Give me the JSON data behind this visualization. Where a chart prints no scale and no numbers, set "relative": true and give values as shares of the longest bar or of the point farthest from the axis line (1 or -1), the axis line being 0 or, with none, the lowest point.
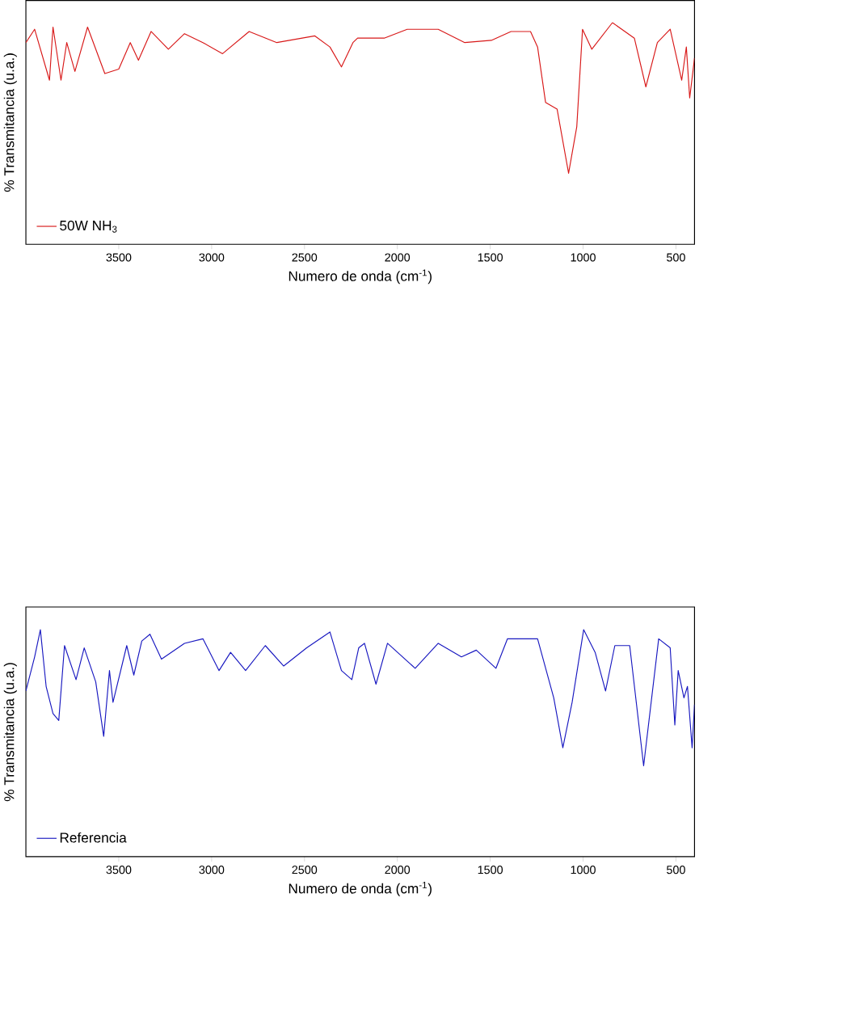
{
  "chart_data": [
    {
      "type": "line",
      "relative": true,
      "xlim": [
        4000,
        400
      ],
      "xticks": [
        3500,
        3000,
        2500,
        2000,
        1500,
        1000,
        500
      ],
      "xlabel": "Numero de onda (cm$^{-1}$)",
      "ylabel": "% Transmitancia (u.a.)",
      "legend": "bottom left",
      "x": [
        4000,
        3953,
        3873,
        3854,
        3811,
        3780,
        3736,
        3668,
        3575,
        3500,
        3438,
        3394,
        3326,
        3233,
        3146,
        3047,
        2941,
        2798,
        2649,
        2444,
        2363,
        2301,
        2239,
        2214,
        2071,
        1947,
        1780,
        1637,
        1494,
        1388,
        1283,
        1245,
        1202,
        1140,
        1078,
        1034,
        1003,
        953,
        842,
        724,
        662,
        600,
        531,
        469,
        444,
        426,
        400
      ],
      "series": [
        {
          "name": "50W NH$_{3}$",
          "color": "#d81818",
          "values": [
            0.91,
            0.97,
            0.74,
            0.98,
            0.74,
            0.91,
            0.78,
            0.98,
            0.77,
            0.79,
            0.91,
            0.83,
            0.96,
            0.88,
            0.95,
            0.91,
            0.86,
            0.96,
            0.91,
            0.94,
            0.89,
            0.8,
            0.91,
            0.93,
            0.93,
            0.97,
            0.97,
            0.91,
            0.92,
            0.96,
            0.96,
            0.89,
            0.64,
            0.61,
            0.32,
            0.53,
            0.97,
            0.88,
            1,
            0.93,
            0.71,
            0.91,
            0.97,
            0.74,
            0.89,
            0.66,
            0.84
          ]
        }
      ]
    },
    {
      "type": "line",
      "relative": true,
      "xlim": [
        4000,
        400
      ],
      "xticks": [
        3500,
        3000,
        2500,
        2000,
        1500,
        1000,
        500
      ],
      "xlabel": "Numero de onda (cm$^{-1}$)",
      "ylabel": "% Transmitancia (u.a.)",
      "legend": "bottom left",
      "x": [
        4000,
        3953,
        3922,
        3891,
        3854,
        3823,
        3792,
        3730,
        3686,
        3624,
        3581,
        3550,
        3531,
        3457,
        3419,
        3376,
        3332,
        3270,
        3146,
        3047,
        2960,
        2898,
        2817,
        2711,
        2612,
        2488,
        2363,
        2301,
        2245,
        2208,
        2177,
        2115,
        2053,
        1904,
        1780,
        1655,
        1575,
        1469,
        1407,
        1245,
        1158,
        1109,
        1059,
        997,
        935,
        879,
        829,
        749,
        674,
        593,
        531,
        506,
        488,
        457,
        438,
        413,
        400
      ],
      "series": [
        {
          "name": "Referencia",
          "color": "#1818c0",
          "values": [
            0.73,
            0.88,
            1,
            0.75,
            0.63,
            0.6,
            0.93,
            0.78,
            0.92,
            0.77,
            0.53,
            0.82,
            0.68,
            0.93,
            0.8,
            0.95,
            0.98,
            0.87,
            0.94,
            0.96,
            0.82,
            0.9,
            0.82,
            0.93,
            0.84,
            0.92,
            0.99,
            0.82,
            0.78,
            0.92,
            0.94,
            0.76,
            0.94,
            0.83,
            0.94,
            0.88,
            0.91,
            0.83,
            0.96,
            0.96,
            0.7,
            0.48,
            0.68,
            1,
            0.9,
            0.73,
            0.93,
            0.93,
            0.4,
            0.96,
            0.92,
            0.58,
            0.82,
            0.7,
            0.75,
            0.48,
            0.67
          ]
        }
      ]
    }
  ]
}
